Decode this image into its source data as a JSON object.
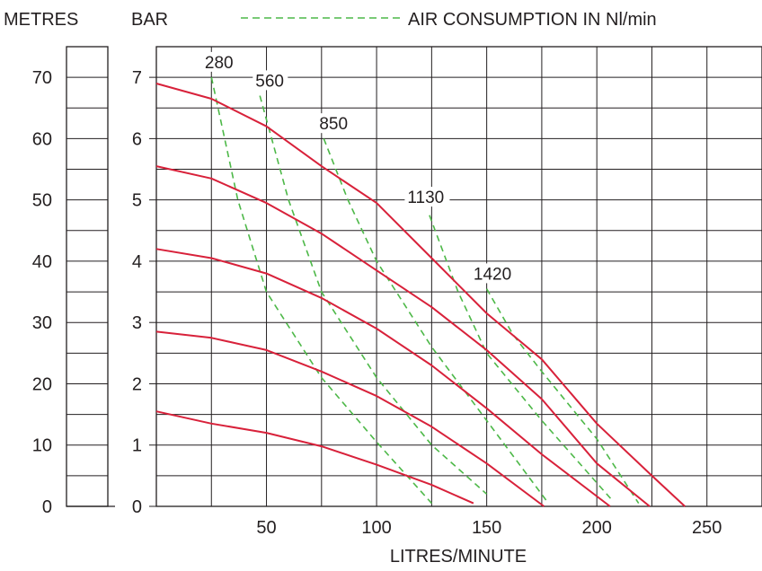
{
  "chart_data": {
    "type": "line",
    "header": {
      "metres_label": "METRES",
      "bar_label": "BAR",
      "legend_label": "AIR CONSUMPTION IN Nl/min"
    },
    "xlabel": "LITRES/MINUTE",
    "xlim": [
      0,
      275
    ],
    "ylim": [
      0,
      7.5
    ],
    "x_ticks": [
      "50",
      "100",
      "150",
      "200",
      "250"
    ],
    "y_ticks_bar": [
      "0",
      "1",
      "2",
      "3",
      "4",
      "5",
      "6",
      "7"
    ],
    "y_ticks_metres": [
      "0",
      "10",
      "20",
      "30",
      "40",
      "50",
      "60",
      "70"
    ],
    "grid": true,
    "legend_position": "top",
    "colors": {
      "performance": "#d8213a",
      "air": "#4db848",
      "ink": "#231f20"
    },
    "series": [
      {
        "points": [
          [
            0,
            6.9
          ],
          [
            25,
            6.65
          ],
          [
            50,
            6.2
          ],
          [
            75,
            5.55
          ],
          [
            100,
            4.95
          ],
          [
            125,
            4.05
          ],
          [
            150,
            3.15
          ],
          [
            175,
            2.4
          ],
          [
            200,
            1.35
          ],
          [
            225,
            0.5
          ],
          [
            240,
            0.0
          ]
        ]
      },
      {
        "points": [
          [
            0,
            5.55
          ],
          [
            25,
            5.35
          ],
          [
            50,
            4.95
          ],
          [
            75,
            4.45
          ],
          [
            100,
            3.85
          ],
          [
            125,
            3.25
          ],
          [
            150,
            2.55
          ],
          [
            175,
            1.75
          ],
          [
            200,
            0.7
          ],
          [
            224,
            0.0
          ]
        ]
      },
      {
        "points": [
          [
            0,
            4.2
          ],
          [
            25,
            4.05
          ],
          [
            50,
            3.8
          ],
          [
            75,
            3.4
          ],
          [
            100,
            2.9
          ],
          [
            125,
            2.3
          ],
          [
            150,
            1.6
          ],
          [
            175,
            0.85
          ],
          [
            206,
            0.0
          ]
        ]
      },
      {
        "points": [
          [
            0,
            2.85
          ],
          [
            25,
            2.75
          ],
          [
            50,
            2.55
          ],
          [
            75,
            2.2
          ],
          [
            100,
            1.8
          ],
          [
            125,
            1.3
          ],
          [
            150,
            0.7
          ],
          [
            176,
            0.0
          ]
        ]
      },
      {
        "points": [
          [
            0,
            1.55
          ],
          [
            25,
            1.35
          ],
          [
            50,
            1.2
          ],
          [
            75,
            0.98
          ],
          [
            100,
            0.68
          ],
          [
            125,
            0.35
          ],
          [
            144,
            0.05
          ]
        ]
      }
    ],
    "air_consumption": [
      {
        "label": "280",
        "label_x": 22,
        "label_y": 7.15,
        "points": [
          [
            25,
            7.0
          ],
          [
            37,
            5.0
          ],
          [
            50,
            3.5
          ],
          [
            75,
            2.1
          ],
          [
            100,
            1.05
          ],
          [
            125,
            0.05
          ]
        ]
      },
      {
        "label": "560",
        "label_x": 45,
        "label_y": 6.85,
        "points": [
          [
            47,
            6.7
          ],
          [
            60,
            5.0
          ],
          [
            75,
            3.5
          ],
          [
            100,
            2.1
          ],
          [
            125,
            1.0
          ],
          [
            150,
            0.2
          ]
        ]
      },
      {
        "label": "850",
        "label_x": 74,
        "label_y": 6.15,
        "points": [
          [
            76,
            6.0
          ],
          [
            87,
            5.0
          ],
          [
            100,
            4.0
          ],
          [
            125,
            2.6
          ],
          [
            150,
            1.4
          ],
          [
            177,
            0.1
          ]
        ]
      },
      {
        "label": "1130",
        "label_x": 114,
        "label_y": 4.95,
        "points": [
          [
            124,
            4.75
          ],
          [
            137,
            3.5
          ],
          [
            150,
            2.5
          ],
          [
            175,
            1.4
          ],
          [
            207,
            0.1
          ]
        ]
      },
      {
        "label": "1420",
        "label_x": 144,
        "label_y": 3.7,
        "points": [
          [
            150,
            3.55
          ],
          [
            162,
            2.8
          ],
          [
            175,
            2.2
          ],
          [
            200,
            1.1
          ],
          [
            219,
            0.05
          ]
        ]
      }
    ]
  }
}
